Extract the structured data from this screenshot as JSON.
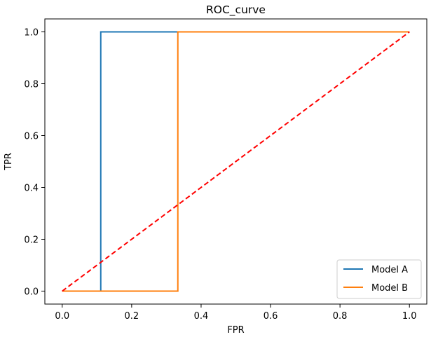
{
  "chart_data": {
    "type": "line",
    "title": "ROC_curve",
    "xlabel": "FPR",
    "ylabel": "TPR",
    "xlim": [
      -0.05,
      1.05
    ],
    "ylim": [
      -0.05,
      1.05
    ],
    "xticks": [
      0.0,
      0.2,
      0.4,
      0.6,
      0.8,
      1.0
    ],
    "yticks": [
      0.0,
      0.2,
      0.4,
      0.6,
      0.8,
      1.0
    ],
    "xtick_labels": [
      "0.0",
      "0.2",
      "0.4",
      "0.6",
      "0.8",
      "1.0"
    ],
    "ytick_labels": [
      "0.0",
      "0.2",
      "0.4",
      "0.6",
      "0.8",
      "1.0"
    ],
    "grid": false,
    "legend_position": "lower-right",
    "series": [
      {
        "name": "Model A",
        "color": "#1f77b4",
        "style": "solid",
        "x": [
          0.0,
          0.111,
          0.111,
          1.0
        ],
        "y": [
          0.0,
          0.0,
          1.0,
          1.0
        ]
      },
      {
        "name": "Model B",
        "color": "#ff7f0e",
        "style": "solid",
        "x": [
          0.0,
          0.333,
          0.333,
          1.0
        ],
        "y": [
          0.0,
          0.0,
          1.0,
          1.0
        ]
      }
    ],
    "reference_line": {
      "color": "#ff0000",
      "style": "dashed",
      "x": [
        0.0,
        1.0
      ],
      "y": [
        0.0,
        1.0
      ]
    }
  }
}
